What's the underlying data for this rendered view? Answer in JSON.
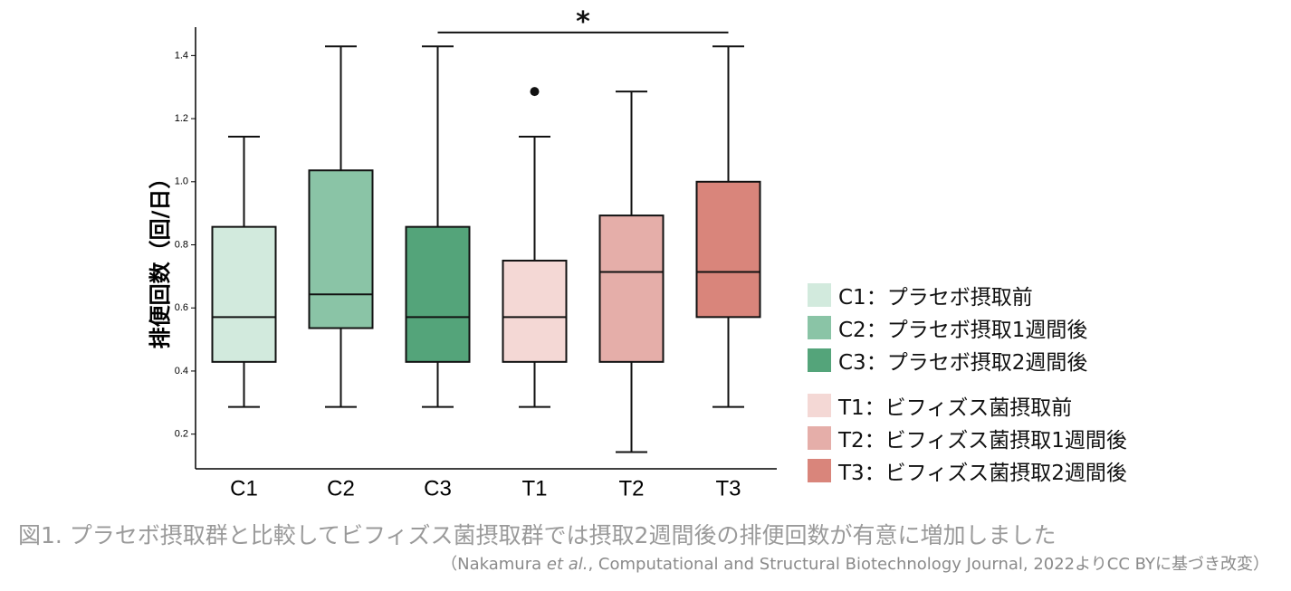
{
  "chart_data": {
    "type": "box",
    "title": "",
    "xlabel": "",
    "ylabel": "排便回数（回/日）",
    "ylim": [
      0.09,
      1.49
    ],
    "yticks": [
      0.2,
      0.4,
      0.6,
      0.8,
      1.0,
      1.2,
      1.4
    ],
    "ytick_labels": [
      "0.2",
      "0.4",
      "0.6",
      "0.8",
      "1.0",
      "1.2",
      "1.4"
    ],
    "grid": false,
    "legend_position": "right",
    "categories": [
      "C1",
      "C2",
      "C3",
      "T1",
      "T2",
      "T3"
    ],
    "boxes": [
      {
        "category": "C1",
        "whisker_low": 0.286,
        "q1": 0.429,
        "median": 0.571,
        "q3": 0.857,
        "whisker_high": 1.143,
        "outliers": [],
        "color": "#d2eadd"
      },
      {
        "category": "C2",
        "whisker_low": 0.286,
        "q1": 0.536,
        "median": 0.643,
        "q3": 1.036,
        "whisker_high": 1.429,
        "outliers": [],
        "color": "#8ac4a6"
      },
      {
        "category": "C3",
        "whisker_low": 0.286,
        "q1": 0.429,
        "median": 0.571,
        "q3": 0.857,
        "whisker_high": 1.429,
        "outliers": [],
        "color": "#54a47a"
      },
      {
        "category": "T1",
        "whisker_low": 0.286,
        "q1": 0.429,
        "median": 0.571,
        "q3": 0.75,
        "whisker_high": 1.143,
        "outliers": [
          1.286
        ],
        "color": "#f4d8d5"
      },
      {
        "category": "T2",
        "whisker_low": 0.143,
        "q1": 0.429,
        "median": 0.714,
        "q3": 0.893,
        "whisker_high": 1.286,
        "outliers": [],
        "color": "#e5aea9"
      },
      {
        "category": "T3",
        "whisker_low": 0.286,
        "q1": 0.571,
        "median": 0.714,
        "q3": 1.0,
        "whisker_high": 1.429,
        "outliers": [],
        "color": "#d9857b"
      }
    ],
    "significance": {
      "from": "C3",
      "to": "T3",
      "y": 1.473,
      "label": "*"
    },
    "legend": [
      {
        "label": "C1：プラセボ摂取前",
        "color": "#d2eadd"
      },
      {
        "label": "C2：プラセボ摂取1週間後",
        "color": "#8ac4a6"
      },
      {
        "label": "C3：プラセボ摂取2週間後",
        "color": "#54a47a"
      },
      {
        "label": "T1：ビフィズス菌摂取前",
        "color": "#f4d8d5"
      },
      {
        "label": "T2：ビフィズス菌摂取1週間後",
        "color": "#e5aea9"
      },
      {
        "label": "T3：ビフィズス菌摂取2週間後",
        "color": "#d9857b"
      }
    ]
  },
  "caption": "図1. プラセボ摂取群と比較してビフィズス菌摂取群では摂取2週間後の排便回数が有意に増加しました",
  "source": {
    "before": "（Nakamura ",
    "italic": "et al.",
    "after": ", Computational and Structural Biotechnology Journal, 2022よりCC BYに基づき改変）"
  }
}
